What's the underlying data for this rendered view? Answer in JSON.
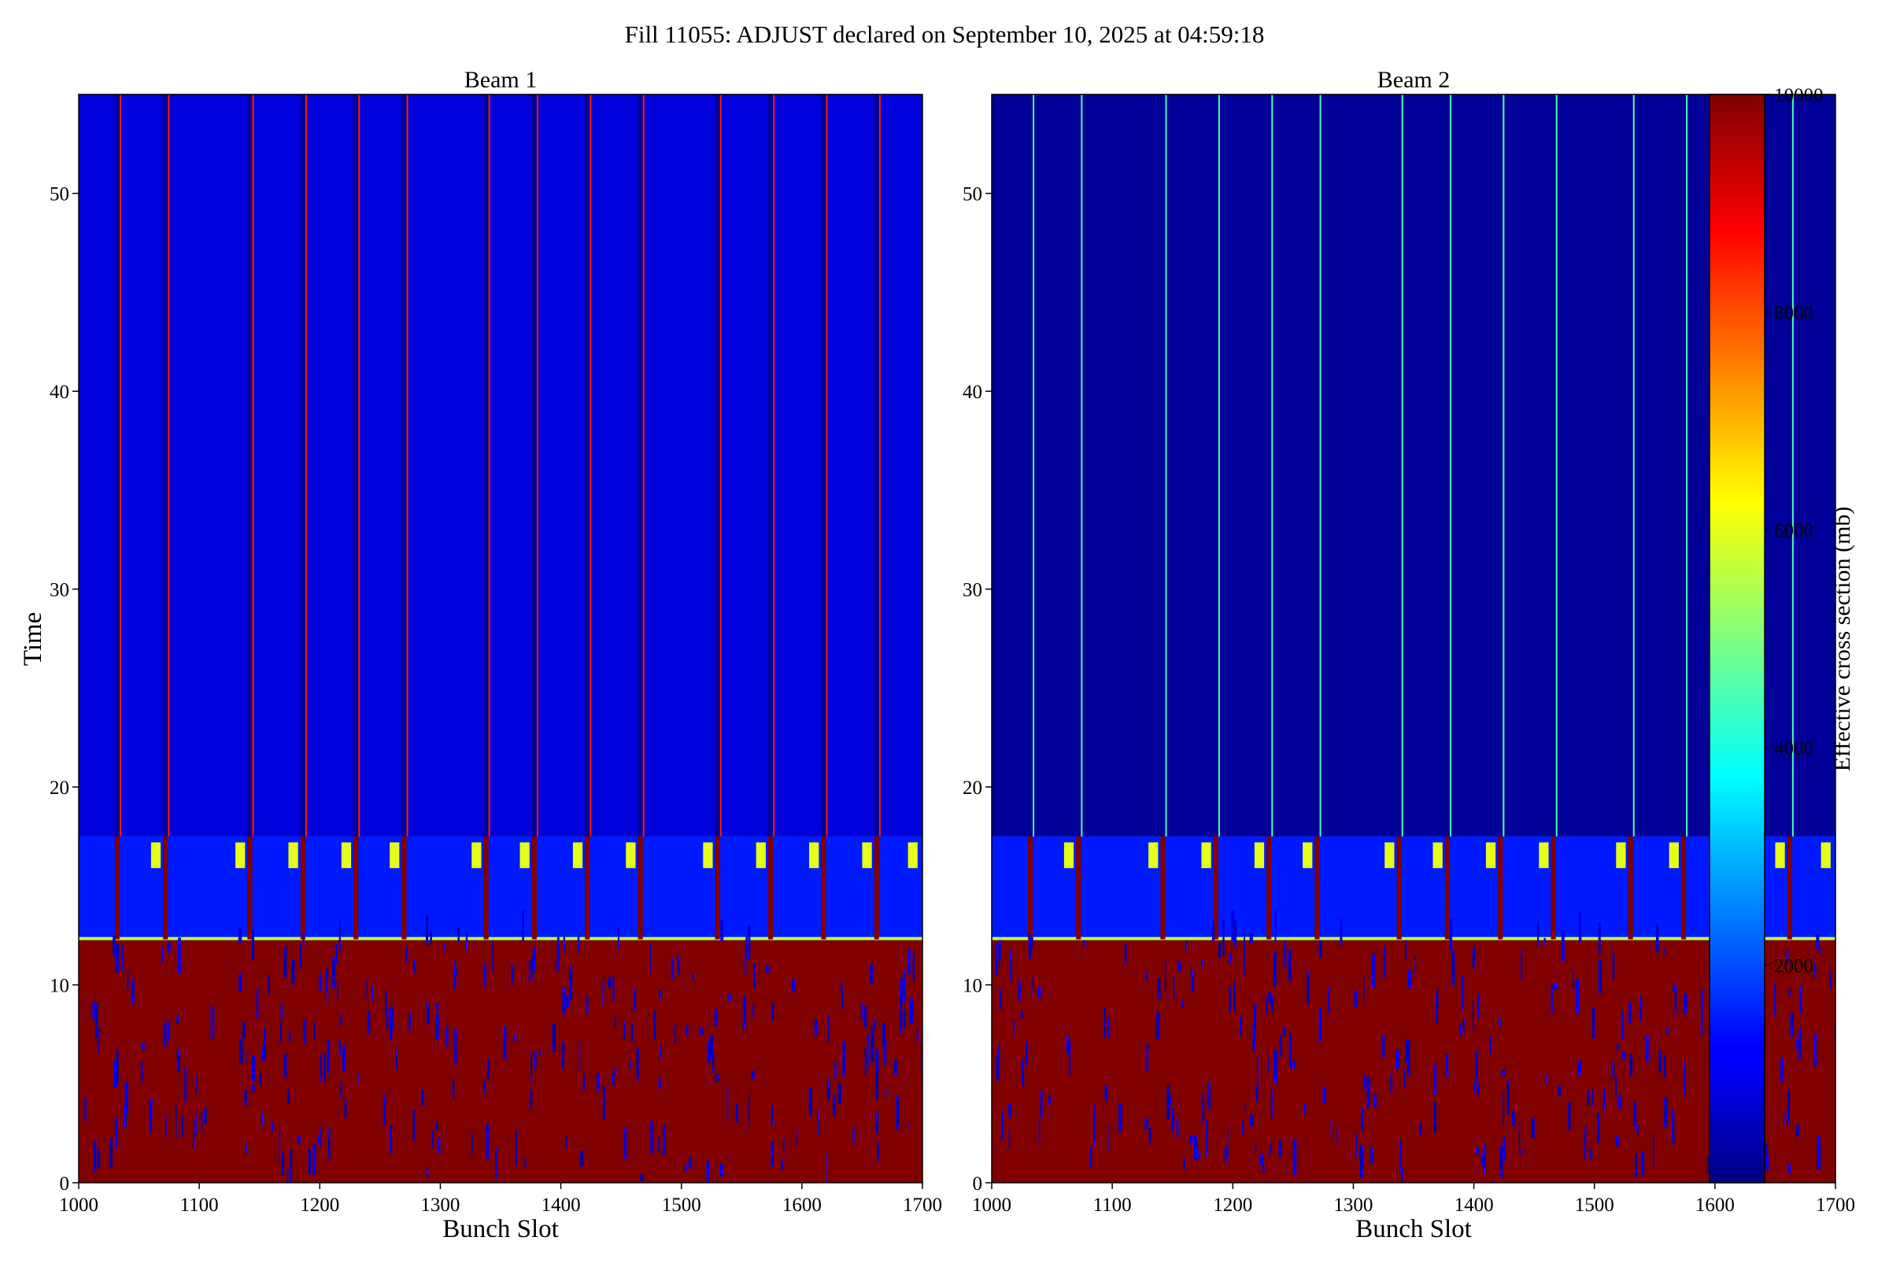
{
  "chart_data": {
    "type": "heatmap",
    "suptitle": "Fill 11055: ADJUST declared on September 10, 2025 at 04:59:18",
    "colormap": "jet",
    "colorbar": {
      "label": "Effective cross section (mb)",
      "range": [
        0,
        10000
      ],
      "ticks": [
        2000,
        4000,
        6000,
        8000,
        10000
      ]
    },
    "xlabel": "Bunch Slot",
    "ylabel": "Time",
    "xlim": [
      1000,
      1700
    ],
    "ylim": [
      0,
      55
    ],
    "xticks": [
      1000,
      1100,
      1200,
      1300,
      1400,
      1500,
      1600,
      1700
    ],
    "yticks": [
      0,
      10,
      20,
      30,
      40,
      50
    ],
    "panels": [
      {
        "title": "Beam 1",
        "saturated_until_time": 12.3,
        "cloud_band_time": [
          12.3,
          17.5
        ],
        "train_gap_slots": [
          1032,
          1072,
          1142,
          1186,
          1230,
          1270,
          1338,
          1378,
          1422,
          1466,
          1530,
          1574,
          1618,
          1662
        ],
        "upper_background_level_mb": 900,
        "gap_background_level_mb": 200
      },
      {
        "title": "Beam 2",
        "saturated_until_time": 12.3,
        "cloud_band_time": [
          12.3,
          17.5
        ],
        "train_gap_slots": [
          1032,
          1072,
          1142,
          1186,
          1230,
          1270,
          1338,
          1378,
          1422,
          1466,
          1530,
          1574,
          1618,
          1662
        ],
        "upper_background_level_mb": 250,
        "gap_background_level_mb": 200
      }
    ]
  }
}
